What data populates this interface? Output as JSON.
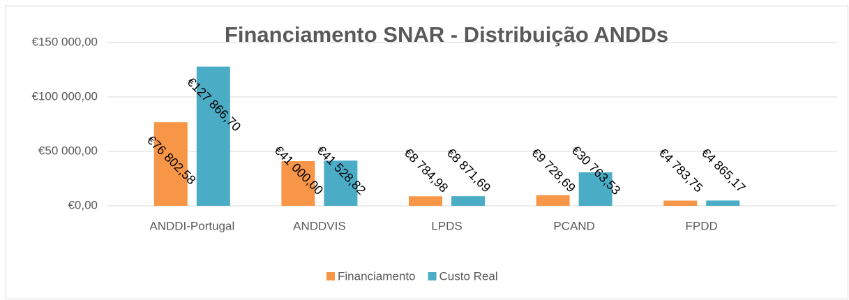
{
  "chart_data": {
    "type": "bar",
    "title": "Financiamento SNAR - Distribuição ANDDs",
    "categories": [
      "ANDDI-Portugal",
      "ANDDVIS",
      "LPDS",
      "PCAND",
      "FPDD"
    ],
    "series": [
      {
        "name": "Financiamento",
        "color": "#f79646",
        "values": [
          76802.58,
          41000.0,
          8784.98,
          9728.69,
          4783.75
        ],
        "value_labels": [
          "€76 802,58",
          "€41 000,00",
          "€8 784,98",
          "€9 728,69",
          "€4 783,75"
        ]
      },
      {
        "name": "Custo Real",
        "color": "#4bacc6",
        "values": [
          127866.7,
          41528.82,
          8871.69,
          30763.53,
          4865.17
        ],
        "value_labels": [
          "€127 866,70",
          "€41 528,82",
          "€8 871,69",
          "€30 763,53",
          "€4 865,17"
        ]
      }
    ],
    "ylim": [
      0,
      150000
    ],
    "yticks": [
      {
        "value": 0,
        "label": "€0,00"
      },
      {
        "value": 50000,
        "label": "€50 000,00"
      },
      {
        "value": 100000,
        "label": "€100 000,00"
      },
      {
        "value": 150000,
        "label": "€150 000,00"
      }
    ],
    "grid": true,
    "legend": "bottom"
  }
}
